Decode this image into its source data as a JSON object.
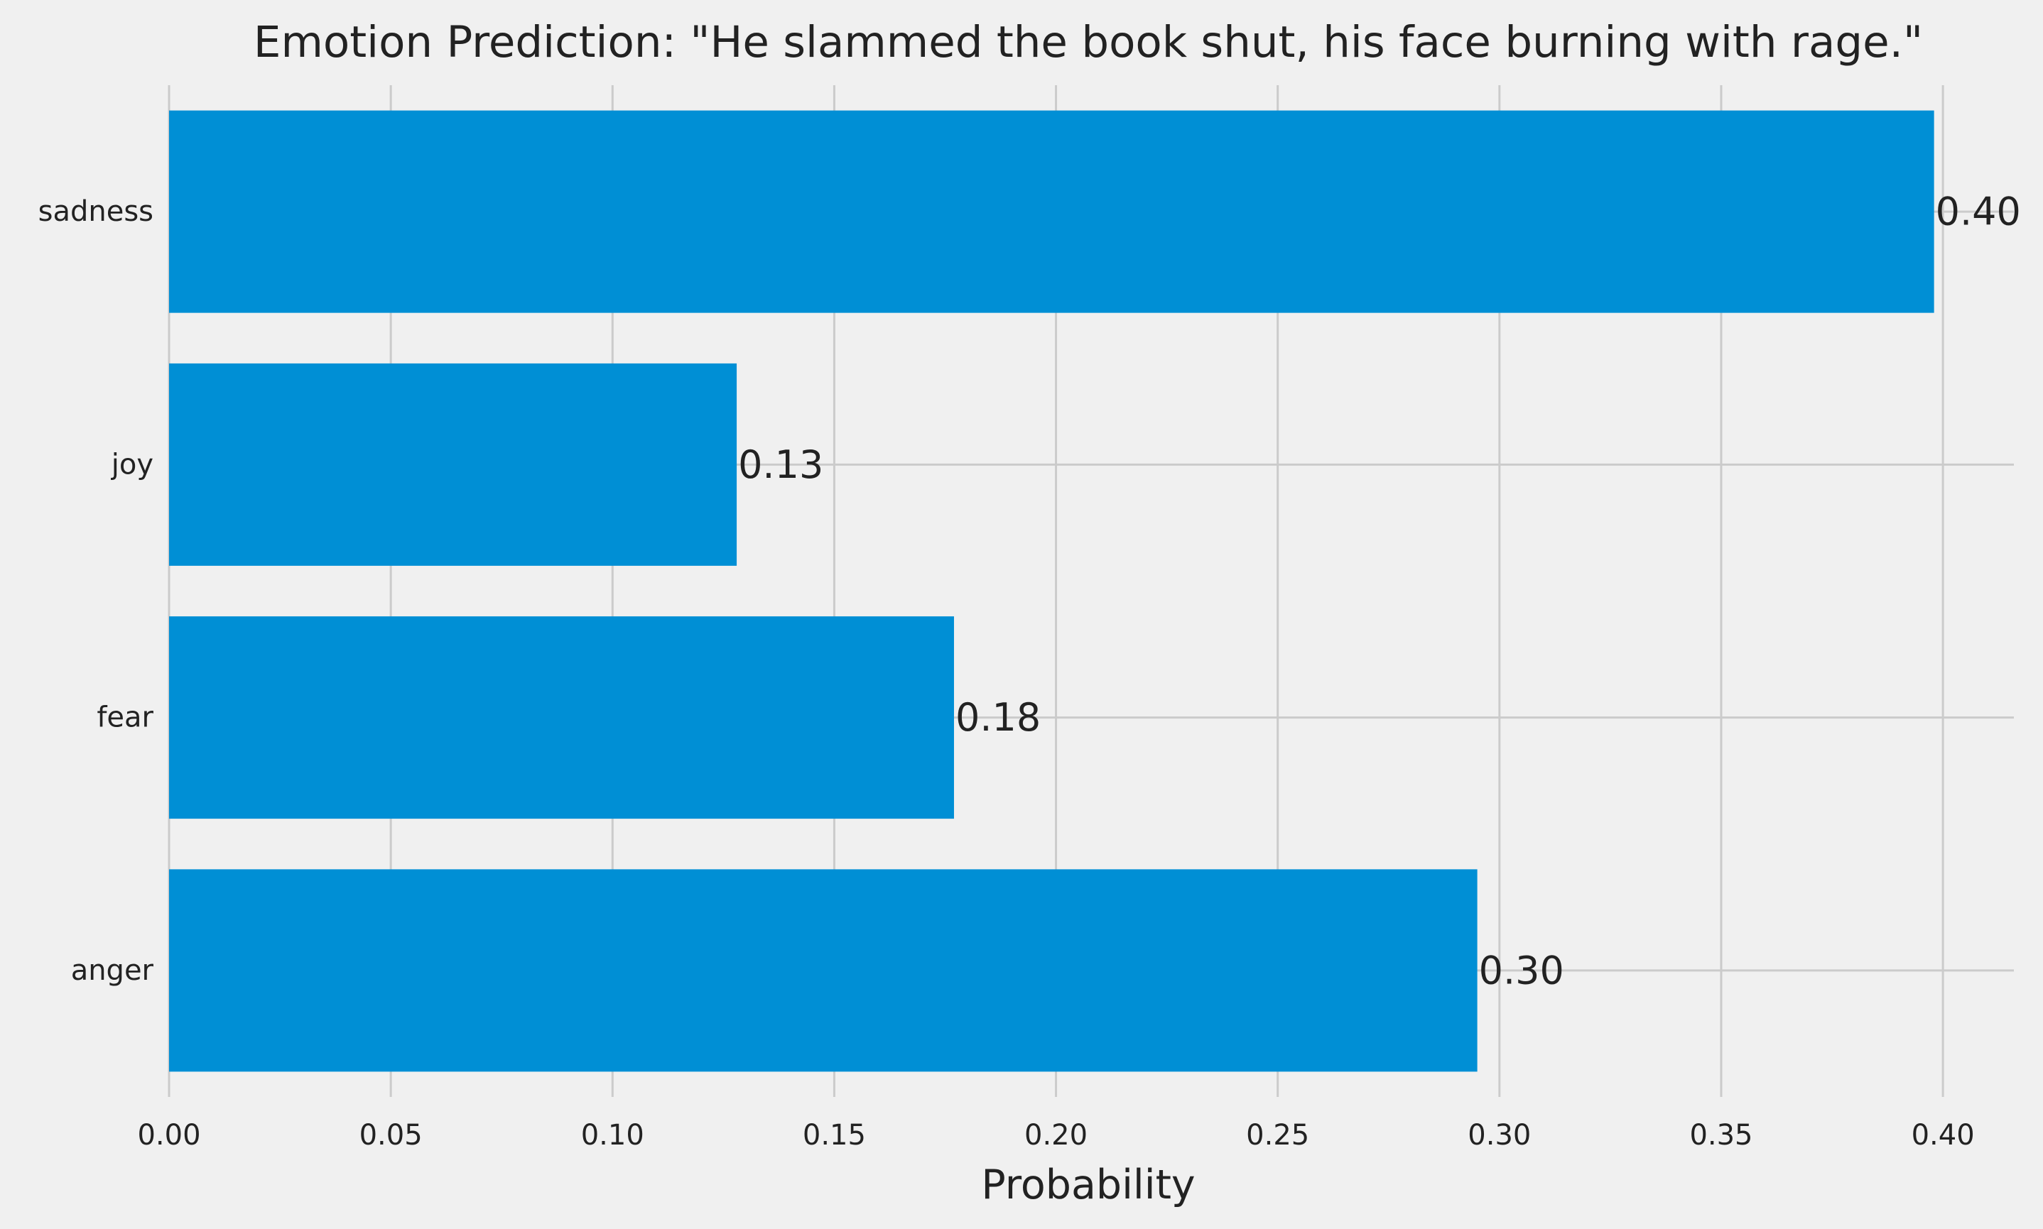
{
  "chart_data": {
    "type": "bar",
    "orientation": "horizontal",
    "title": "Emotion Prediction: \"He slammed the book shut, his face burning with rage.\"",
    "xlabel": "Probability",
    "ylabel": "",
    "categories": [
      "anger",
      "fear",
      "joy",
      "sadness"
    ],
    "values": [
      0.295,
      0.177,
      0.128,
      0.398
    ],
    "value_labels": [
      "0.30",
      "0.18",
      "0.13",
      "0.40"
    ],
    "xlim": [
      0,
      0.416
    ],
    "xticks": [
      "0.00",
      "0.05",
      "0.10",
      "0.15",
      "0.20",
      "0.25",
      "0.30",
      "0.35",
      "0.40"
    ],
    "grid": true,
    "legend": "none",
    "colors": {
      "bar": "#008fd5",
      "background": "#f0f0f0",
      "grid": "#cbcbcb",
      "text": "#222222"
    }
  }
}
